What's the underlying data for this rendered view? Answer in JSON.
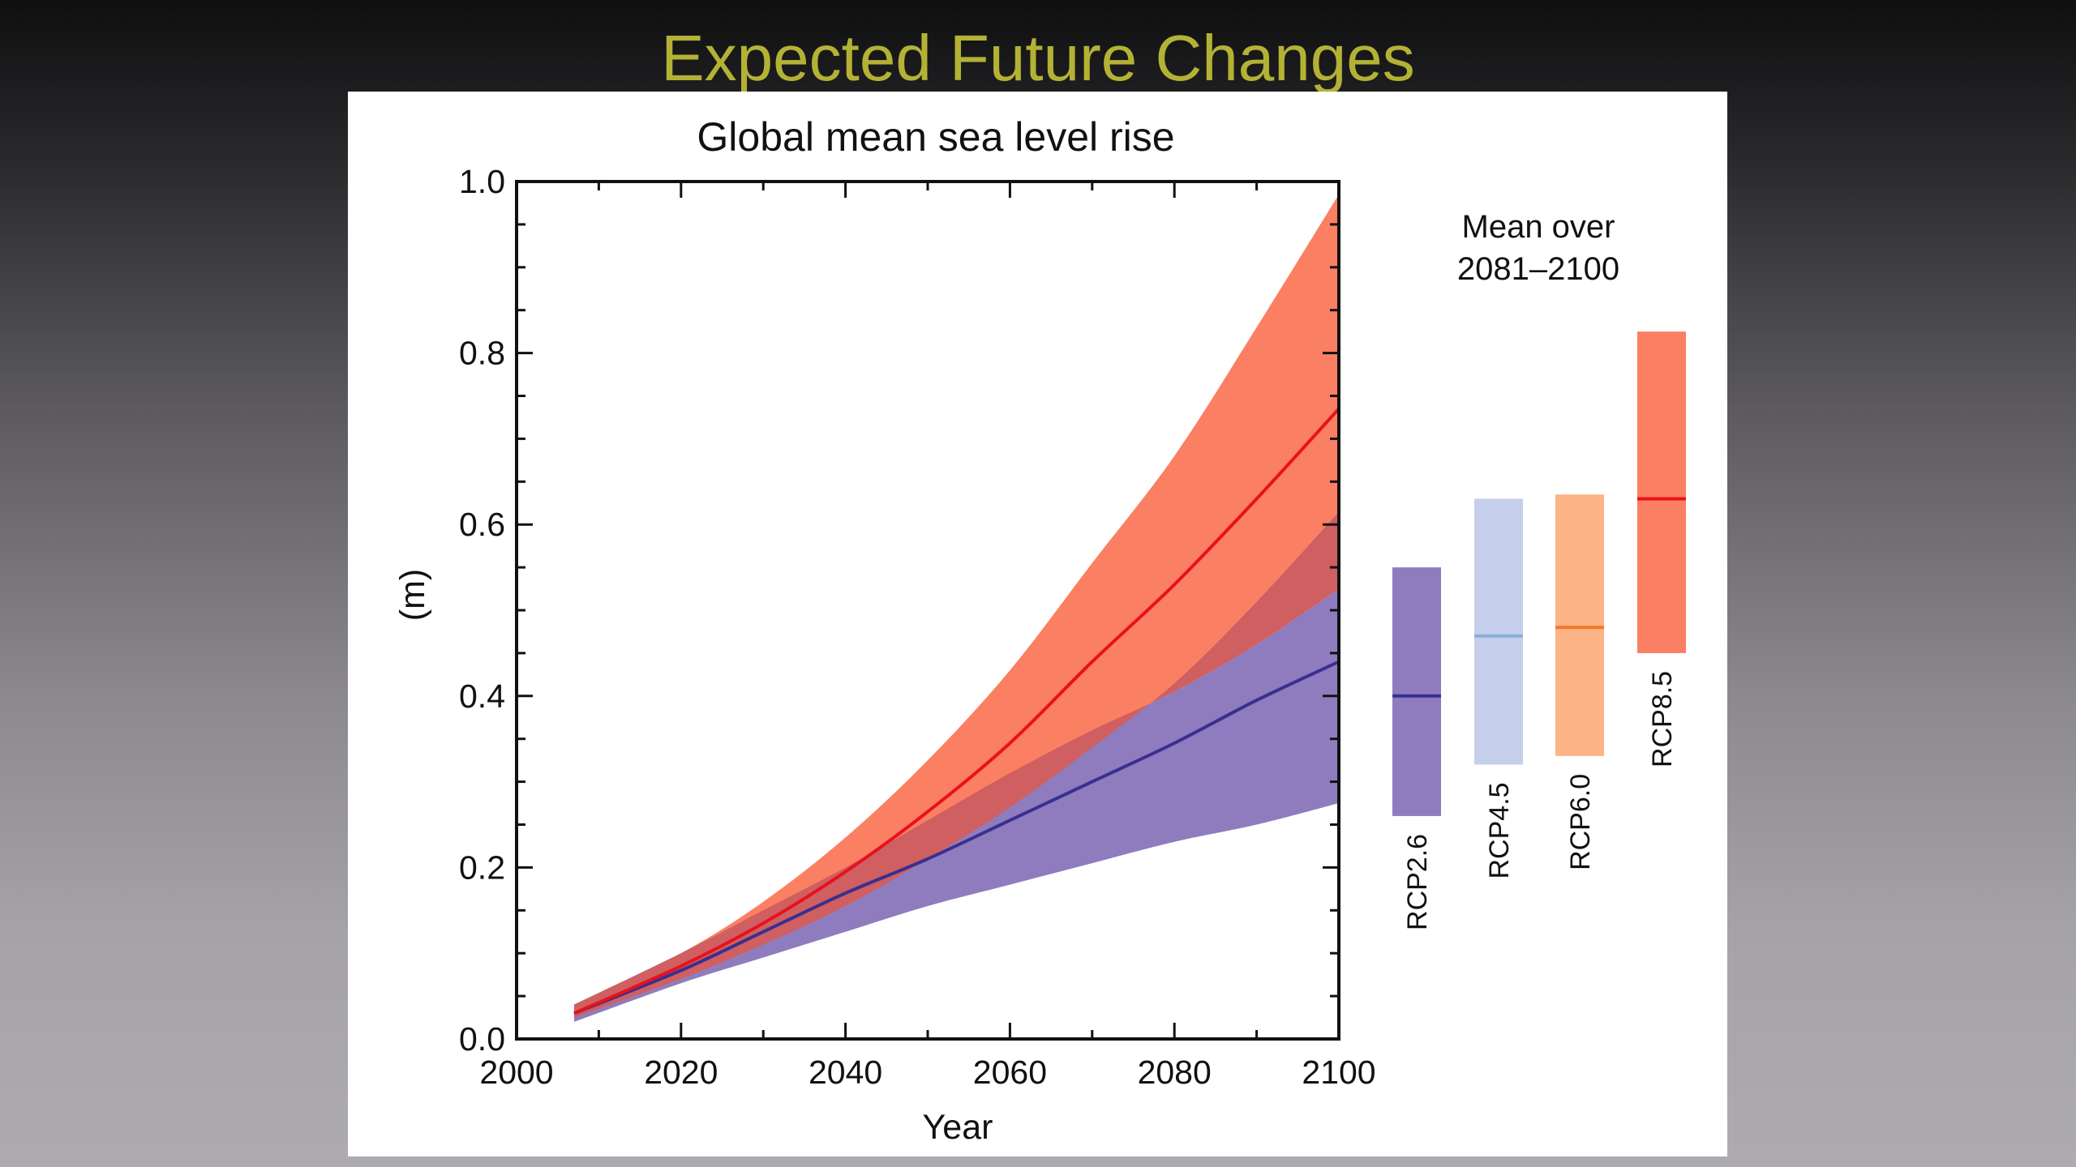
{
  "slide": {
    "title": "Expected Future Changes"
  },
  "colors": {
    "rcp26_band": "#8e7cbf",
    "rcp26_line": "#3a2f8f",
    "rcp85_band": "#fb7f62",
    "rcp85_line": "#e8111c",
    "overlap": "#cf5f60",
    "rcp45_bar": "#c5cfec",
    "rcp45_line": "#8aaddb",
    "rcp60_bar": "#fdb487",
    "rcp60_line": "#f5782a"
  },
  "chart_data": {
    "type": "area",
    "title": "Global mean sea level rise",
    "xlabel": "Year",
    "ylabel": "(m)",
    "xlim": [
      2000,
      2100
    ],
    "ylim": [
      0.0,
      1.0
    ],
    "xticks": [
      "2000",
      "2020",
      "2040",
      "2060",
      "2080",
      "2100"
    ],
    "yticks": [
      "0.0",
      "0.2",
      "0.4",
      "0.6",
      "0.8",
      "1.0"
    ],
    "x": [
      2007,
      2020,
      2030,
      2040,
      2050,
      2060,
      2070,
      2080,
      2090,
      2100
    ],
    "series": [
      {
        "name": "RCP2.6",
        "mean": [
          0.03,
          0.08,
          0.125,
          0.17,
          0.21,
          0.255,
          0.3,
          0.345,
          0.395,
          0.44
        ],
        "lower": [
          0.02,
          0.065,
          0.095,
          0.125,
          0.155,
          0.18,
          0.205,
          0.23,
          0.25,
          0.275
        ],
        "upper": [
          0.04,
          0.1,
          0.15,
          0.2,
          0.255,
          0.31,
          0.36,
          0.405,
          0.46,
          0.525
        ]
      },
      {
        "name": "RCP8.5",
        "mean": [
          0.03,
          0.085,
          0.135,
          0.195,
          0.265,
          0.345,
          0.44,
          0.53,
          0.63,
          0.735
        ],
        "lower": [
          0.025,
          0.07,
          0.11,
          0.155,
          0.21,
          0.27,
          0.34,
          0.415,
          0.51,
          0.615
        ],
        "upper": [
          0.04,
          0.1,
          0.16,
          0.235,
          0.325,
          0.43,
          0.555,
          0.68,
          0.83,
          0.985
        ]
      }
    ],
    "side_panel": {
      "title_line1": "Mean over",
      "title_line2": "2081–2100",
      "bars": [
        {
          "label": "RCP2.6",
          "low": 0.26,
          "median": 0.4,
          "high": 0.55
        },
        {
          "label": "RCP4.5",
          "low": 0.32,
          "median": 0.47,
          "high": 0.63
        },
        {
          "label": "RCP6.0",
          "low": 0.33,
          "median": 0.48,
          "high": 0.635
        },
        {
          "label": "RCP8.5",
          "low": 0.45,
          "median": 0.63,
          "high": 0.825
        }
      ]
    }
  }
}
